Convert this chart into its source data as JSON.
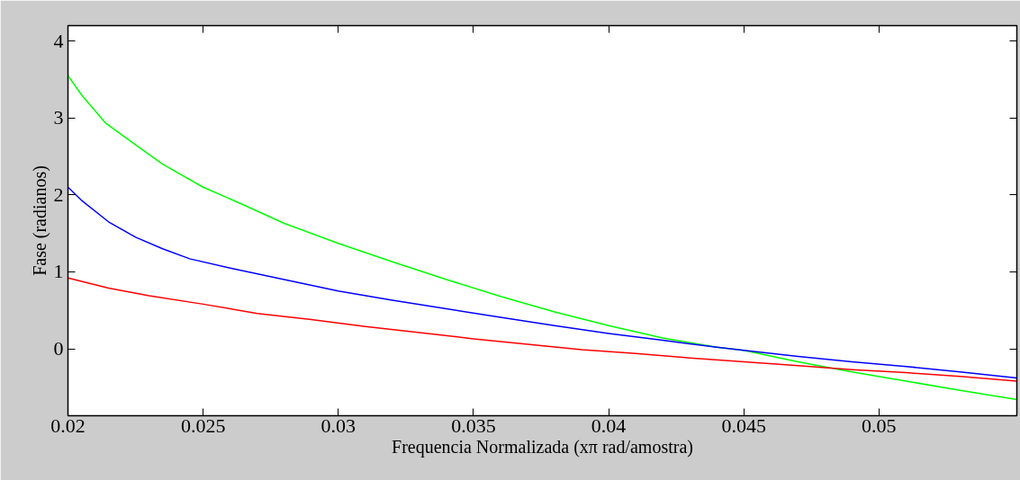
{
  "chart_data": {
    "type": "line",
    "xlabel": "Frequencia Normalizada (xπ rad/amostra)",
    "ylabel": "Fase (radianos)",
    "xlim": [
      0.02,
      0.0551
    ],
    "ylim": [
      -0.87,
      4.2
    ],
    "xticks": [
      0.02,
      0.025,
      0.03,
      0.035,
      0.04,
      0.045,
      0.05
    ],
    "yticks": [
      0,
      1,
      2,
      3,
      4
    ],
    "line_style": "solid",
    "marker": "none",
    "series": [
      {
        "color": "#00ff00",
        "x": [
          0.02,
          0.0205,
          0.0214,
          0.0225,
          0.0235,
          0.025,
          0.0265,
          0.028,
          0.03,
          0.032,
          0.034,
          0.036,
          0.038,
          0.04,
          0.042,
          0.044,
          0.045,
          0.047,
          0.049,
          0.051,
          0.053,
          0.0551
        ],
        "values": [
          3.55,
          3.3,
          2.93,
          2.65,
          2.4,
          2.1,
          1.87,
          1.63,
          1.37,
          1.13,
          0.9,
          0.68,
          0.48,
          0.3,
          0.14,
          0.02,
          -0.02,
          -0.17,
          -0.3,
          -0.42,
          -0.54,
          -0.66
        ]
      },
      {
        "color": "#0000ff",
        "x": [
          0.02,
          0.0205,
          0.0215,
          0.0225,
          0.0235,
          0.0245,
          0.026,
          0.028,
          0.03,
          0.032,
          0.034,
          0.036,
          0.038,
          0.04,
          0.042,
          0.044,
          0.045,
          0.047,
          0.049,
          0.051,
          0.053,
          0.0551
        ],
        "values": [
          2.1,
          1.93,
          1.65,
          1.45,
          1.3,
          1.17,
          1.05,
          0.9,
          0.75,
          0.63,
          0.52,
          0.41,
          0.3,
          0.2,
          0.11,
          0.02,
          -0.02,
          -0.1,
          -0.17,
          -0.23,
          -0.3,
          -0.38
        ]
      },
      {
        "color": "#ff0000",
        "x": [
          0.02,
          0.0215,
          0.023,
          0.025,
          0.027,
          0.029,
          0.031,
          0.033,
          0.035,
          0.037,
          0.039,
          0.041,
          0.043,
          0.045,
          0.047,
          0.049,
          0.051,
          0.053,
          0.0551
        ],
        "values": [
          0.92,
          0.79,
          0.69,
          0.58,
          0.46,
          0.38,
          0.29,
          0.21,
          0.13,
          0.06,
          -0.01,
          -0.06,
          -0.12,
          -0.17,
          -0.22,
          -0.27,
          -0.31,
          -0.36,
          -0.42
        ]
      }
    ]
  }
}
